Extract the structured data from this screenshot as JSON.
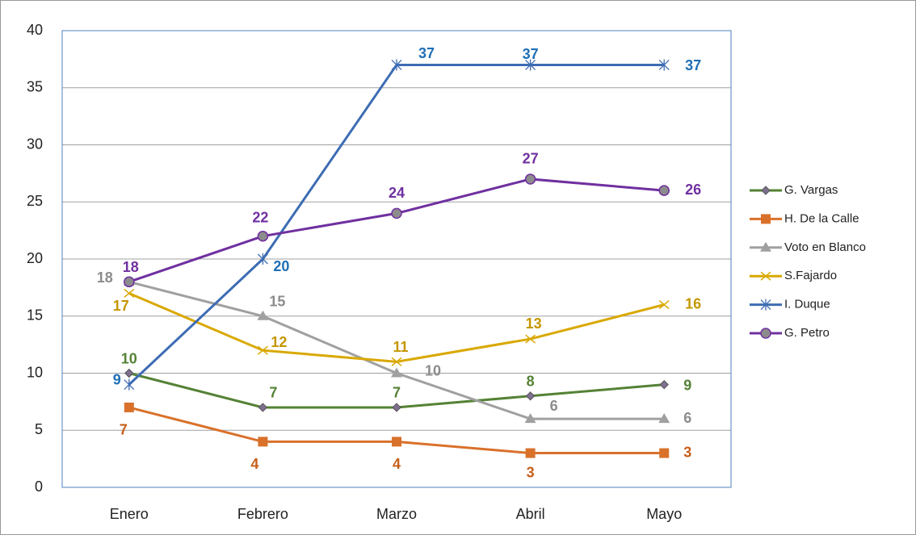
{
  "chart_data": {
    "type": "line",
    "categories": [
      "Enero",
      "Febrero",
      "Marzo",
      "Abril",
      "Mayo"
    ],
    "series": [
      {
        "name": "G. Vargas",
        "color": "#548235",
        "marker": "diamond",
        "values": [
          10,
          7,
          7,
          8,
          9
        ]
      },
      {
        "name": "H. De la Calle",
        "color": "#d9712b",
        "marker": "square",
        "values": [
          7,
          4,
          4,
          3,
          3
        ]
      },
      {
        "name": "Voto en Blanco",
        "color": "#a0a0a0",
        "marker": "triangle",
        "values": [
          18,
          15,
          10,
          6,
          6
        ]
      },
      {
        "name": "S.Fajardo",
        "color": "#d9a800",
        "marker": "x",
        "values": [
          17,
          12,
          11,
          13,
          16
        ]
      },
      {
        "name": "I. Duque",
        "color": "#3d6cb3",
        "marker": "asterisk",
        "values": [
          9,
          20,
          37,
          37,
          37
        ]
      },
      {
        "name": "G. Petro",
        "color": "#7030a0",
        "marker": "circle",
        "values": [
          18,
          22,
          24,
          27,
          26
        ]
      }
    ],
    "label_colors": [
      "#548235",
      "#c65f1a",
      "#8c8c8c",
      "#c49600",
      "#1f6fb5",
      "#7030a0"
    ],
    "ylim": [
      0,
      40
    ],
    "yticks": [
      0,
      5,
      10,
      15,
      20,
      25,
      30,
      35,
      40
    ],
    "grid": true,
    "legend": "right"
  }
}
